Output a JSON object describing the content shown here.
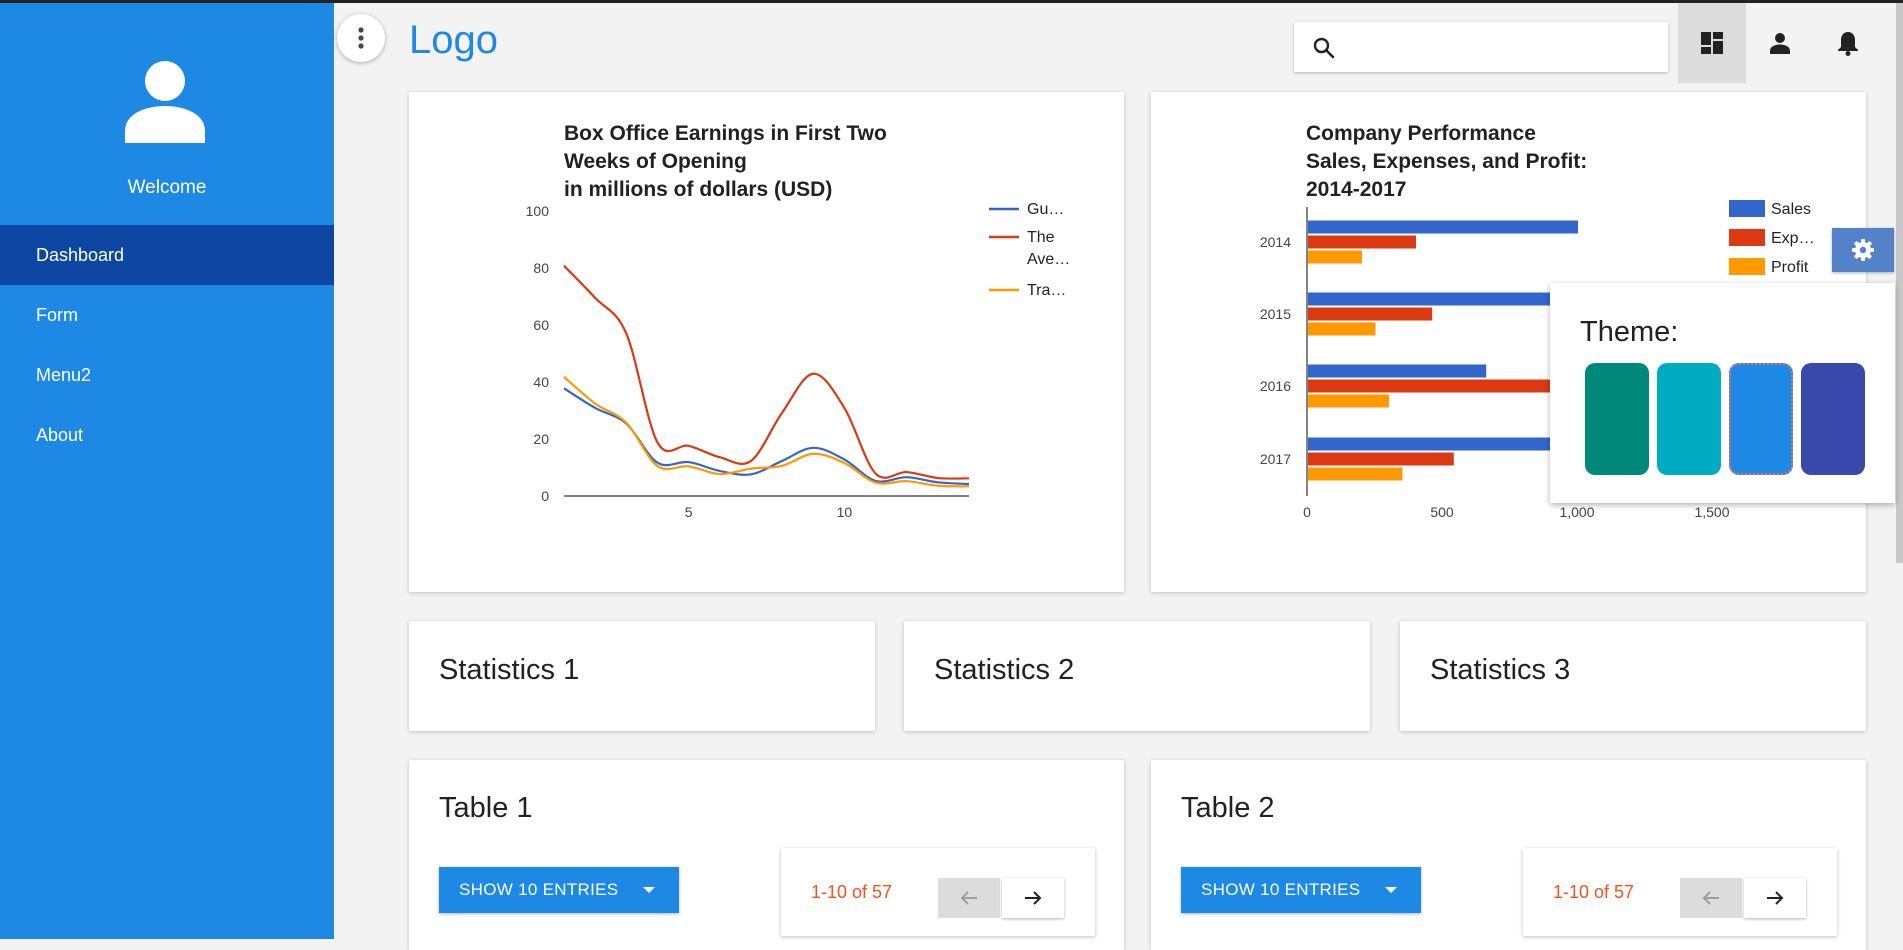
{
  "sidebar": {
    "welcome": "Welcome",
    "items": [
      {
        "label": "Dashboard",
        "active": true
      },
      {
        "label": "Form"
      },
      {
        "label": "Menu2"
      },
      {
        "label": "About"
      }
    ]
  },
  "header": {
    "logo": "Logo",
    "search_placeholder": "",
    "icons": [
      "more-vert-icon",
      "search-icon",
      "dashboard-icon",
      "person-icon",
      "bell-icon"
    ]
  },
  "charts": {
    "box_office": {
      "title_lines": [
        "Box Office Earnings in First Two",
        "Weeks of Opening",
        "in millions of dollars (USD)"
      ],
      "y_ticks": [
        "100",
        "80",
        "60",
        "40",
        "20",
        "0"
      ],
      "x_ticks": [
        "5",
        "10"
      ],
      "legend": [
        {
          "label": "Gu…",
          "color": "#3366cc"
        },
        {
          "label": "The",
          "label2": "Ave…",
          "color": "#dc3912"
        },
        {
          "label": "Tra…",
          "color": "#ff9900"
        }
      ]
    },
    "company": {
      "title_lines": [
        "Company Performance",
        "Sales, Expenses, and Profit:",
        "2014-2017"
      ],
      "y_ticks": [
        "2014",
        "2015",
        "2016",
        "2017"
      ],
      "x_ticks": [
        "0",
        "500",
        "1,000",
        "1,500"
      ],
      "legend": [
        {
          "label": "Sales",
          "color": "#3366cc"
        },
        {
          "label": "Exp…",
          "color": "#dc3912"
        },
        {
          "label": "Profit",
          "color": "#ff9900"
        }
      ]
    }
  },
  "chart_data": [
    {
      "type": "line",
      "title": "Box Office Earnings in First Two Weeks of Opening in millions of dollars (USD)",
      "x": [
        1,
        2,
        3,
        4,
        5,
        6,
        7,
        8,
        9,
        10,
        11,
        12,
        13,
        14
      ],
      "ylim": [
        0,
        100
      ],
      "series": [
        {
          "name": "Gu…",
          "color": "#3366cc",
          "values": [
            37.8,
            30.9,
            25.4,
            11.7,
            11.9,
            8.8,
            7.6,
            12.3,
            16.9,
            12.8,
            5.3,
            6.6,
            4.8,
            4.2
          ]
        },
        {
          "name": "The Ave…",
          "color": "#dc3912",
          "values": [
            80.8,
            69.5,
            57,
            18.8,
            17.6,
            13.6,
            12.3,
            29.2,
            42.9,
            30.9,
            7.9,
            8.4,
            6.3,
            6.2
          ]
        },
        {
          "name": "Tra…",
          "color": "#ff9900",
          "values": [
            41.8,
            32.4,
            25.7,
            10.5,
            10.4,
            7.7,
            9.6,
            10.6,
            14.8,
            11.6,
            4.7,
            5.2,
            3.6,
            3.4
          ]
        }
      ]
    },
    {
      "type": "bar",
      "title": "Company Performance Sales, Expenses, and Profit: 2014-2017",
      "categories": [
        "2014",
        "2015",
        "2016",
        "2017"
      ],
      "xlim": [
        0,
        2000
      ],
      "series": [
        {
          "name": "Sales",
          "color": "#3366cc",
          "values": [
            1000,
            1170,
            660,
            1030
          ]
        },
        {
          "name": "Exp…",
          "color": "#dc3912",
          "values": [
            400,
            460,
            1120,
            540
          ]
        },
        {
          "name": "Profit",
          "color": "#ff9900",
          "values": [
            200,
            250,
            300,
            350
          ]
        }
      ]
    }
  ],
  "stats": [
    "Statistics 1",
    "Statistics 2",
    "Statistics 3"
  ],
  "tables": [
    {
      "title": "Table 1",
      "entries_label": "SHOW 10 ENTRIES",
      "count": "1-10 of 57"
    },
    {
      "title": "Table 2",
      "entries_label": "SHOW 10 ENTRIES",
      "count": "1-10 of 57"
    }
  ],
  "theme": {
    "label": "Theme:",
    "swatches": [
      "#00897b",
      "#00acc1",
      "#1e88e5",
      "#3949ab"
    ],
    "selected": 2
  }
}
